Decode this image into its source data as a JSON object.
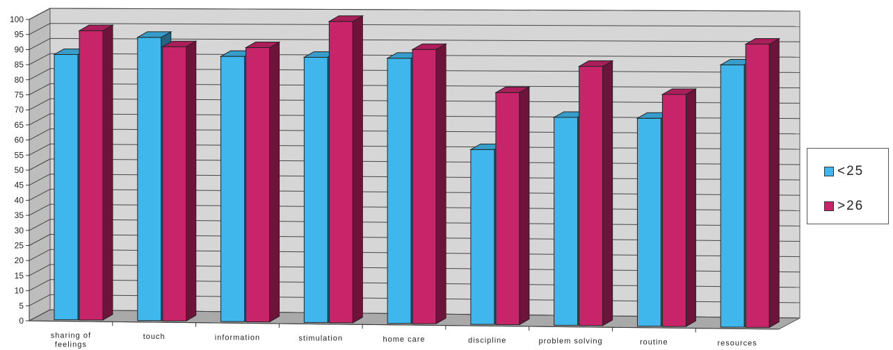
{
  "chart_data": {
    "type": "bar",
    "categories": [
      "sharing of feelings",
      "touch",
      "information",
      "stimulation",
      "home care",
      "discipline",
      "problem solving",
      "routine",
      "resources"
    ],
    "series": [
      {
        "name": "<25",
        "values": [
          88,
          94,
          88,
          88,
          88,
          58,
          69,
          69,
          87
        ],
        "color": "#3fb7ec"
      },
      {
        "name": ">26",
        "values": [
          96,
          91,
          91,
          100,
          91,
          77,
          86,
          77,
          94
        ],
        "color": "#c8246a"
      }
    ],
    "yticks": [
      "0",
      "5",
      "10",
      "15",
      "20",
      "25",
      "30",
      "35",
      "40",
      "45",
      "50",
      "55",
      "60",
      "65",
      "70",
      "75",
      "80",
      "85",
      "90",
      "95",
      "100"
    ],
    "ylim": [
      0,
      100
    ],
    "grid": true,
    "legend_position": "right"
  }
}
